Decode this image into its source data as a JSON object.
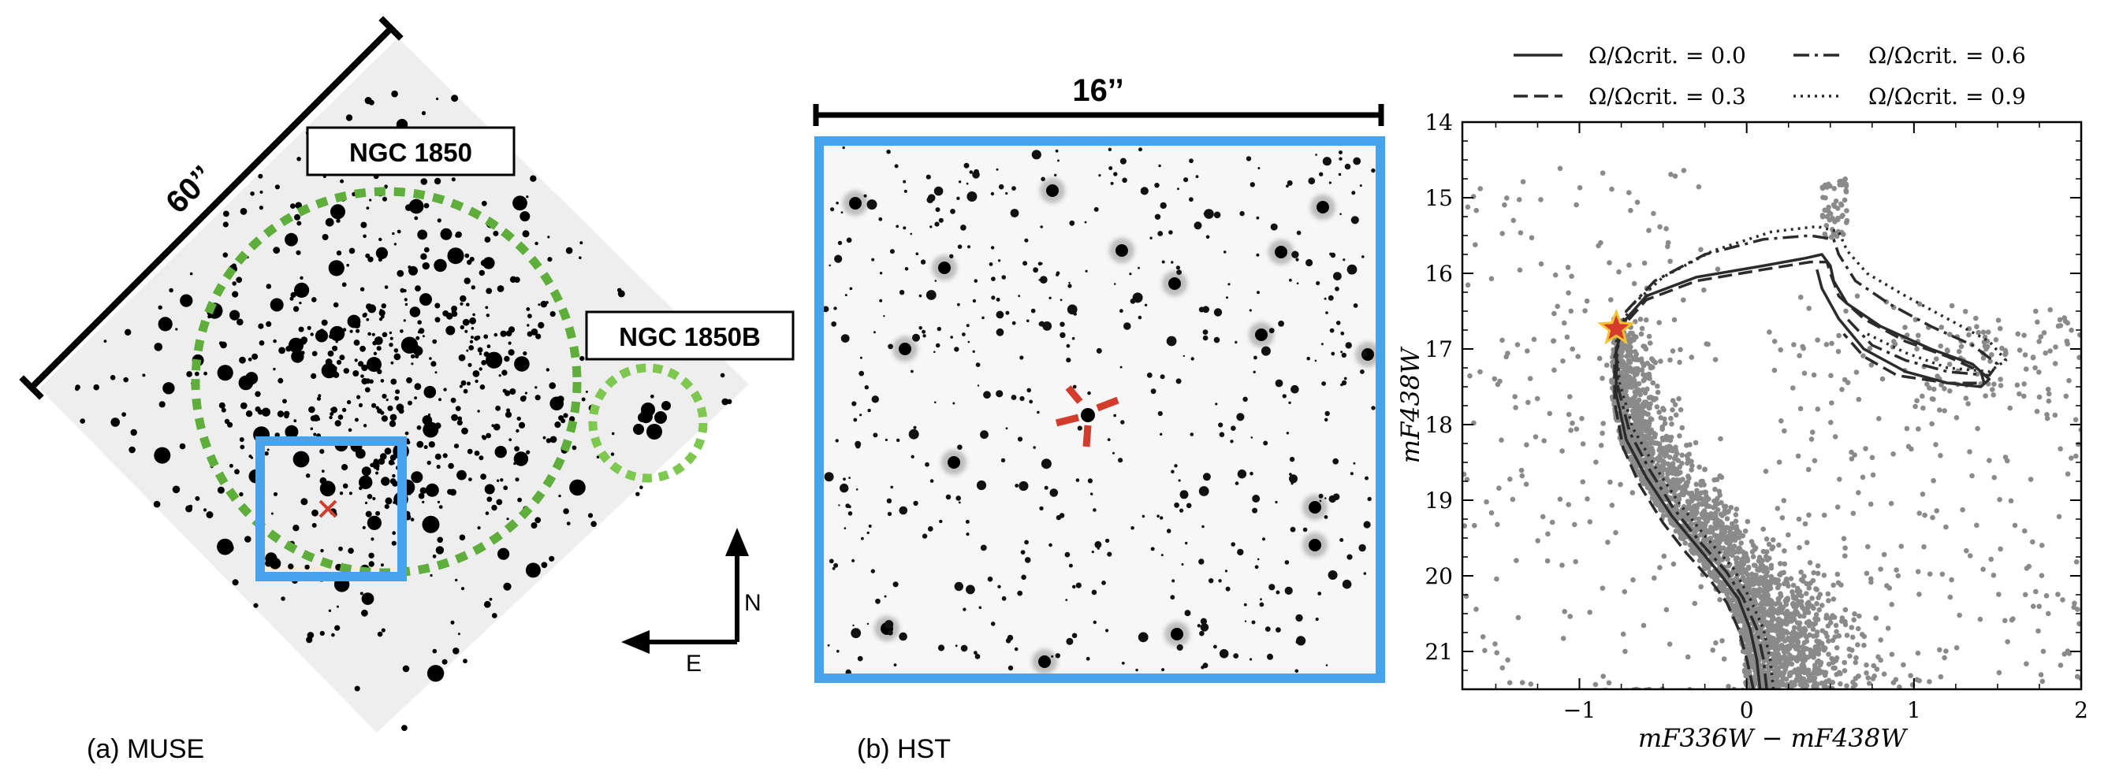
{
  "panel_a": {
    "caption": "(a) MUSE",
    "scale_label": "60’’",
    "cluster_main": "NGC 1850",
    "cluster_secondary": "NGC 1850B",
    "compass_north": "N",
    "compass_east": "E"
  },
  "panel_b": {
    "caption": "(b) HST",
    "scale_label": "16’’"
  },
  "panel_c": {
    "legend": [
      {
        "label": "Ω/Ωcrit. = 0.0",
        "style": "solid"
      },
      {
        "label": "Ω/Ωcrit. = 0.6",
        "style": "dashdot"
      },
      {
        "label": "Ω/Ωcrit. = 0.3",
        "style": "dashed"
      },
      {
        "label": "Ω/Ωcrit. = 0.9",
        "style": "dotted"
      }
    ],
    "xlabel": "mF336W − mF438W",
    "ylabel": "mF438W"
  },
  "chart_data": {
    "type": "scatter",
    "xlim": [
      -1.7,
      2.0
    ],
    "ylim": [
      21.5,
      14.0
    ],
    "x_ticks": [
      "−1",
      "0",
      "1",
      "2"
    ],
    "x_tick_values": [
      -1,
      0,
      1,
      2
    ],
    "y_ticks": [
      "14",
      "15",
      "16",
      "17",
      "18",
      "19",
      "20",
      "21"
    ],
    "y_tick_values": [
      14,
      15,
      16,
      17,
      18,
      19,
      20,
      21
    ],
    "highlight_star": {
      "x": -0.78,
      "y": 16.73
    },
    "point_color": "#8a8a8a",
    "isochrones": [
      {
        "style": "solid",
        "points": [
          [
            0.08,
            21.5
          ],
          [
            0.06,
            21.1
          ],
          [
            0.02,
            20.7
          ],
          [
            -0.05,
            20.3
          ],
          [
            -0.15,
            20.0
          ],
          [
            -0.3,
            19.6
          ],
          [
            -0.45,
            19.2
          ],
          [
            -0.6,
            18.7
          ],
          [
            -0.72,
            18.2
          ],
          [
            -0.78,
            17.6
          ],
          [
            -0.78,
            17.0
          ],
          [
            -0.72,
            16.6
          ],
          [
            -0.6,
            16.3
          ],
          [
            -0.3,
            16.05
          ],
          [
            0.1,
            15.9
          ],
          [
            0.35,
            15.8
          ],
          [
            0.45,
            15.75
          ],
          [
            0.5,
            15.9
          ],
          [
            0.52,
            16.1
          ],
          [
            0.6,
            16.4
          ],
          [
            0.8,
            16.7
          ],
          [
            1.1,
            17.0
          ],
          [
            1.35,
            17.2
          ],
          [
            1.45,
            17.4
          ],
          [
            1.4,
            17.5
          ],
          [
            1.2,
            17.45
          ],
          [
            0.95,
            17.3
          ],
          [
            0.7,
            17.0
          ],
          [
            0.55,
            16.6
          ],
          [
            0.45,
            16.2
          ],
          [
            0.42,
            15.95
          ]
        ]
      },
      {
        "style": "dashed",
        "points": [
          [
            0.04,
            21.5
          ],
          [
            0.0,
            21.1
          ],
          [
            -0.05,
            20.7
          ],
          [
            -0.12,
            20.35
          ],
          [
            -0.22,
            20.05
          ],
          [
            -0.36,
            19.7
          ],
          [
            -0.5,
            19.3
          ],
          [
            -0.64,
            18.8
          ],
          [
            -0.74,
            18.3
          ],
          [
            -0.79,
            17.7
          ],
          [
            -0.79,
            17.1
          ],
          [
            -0.72,
            16.65
          ],
          [
            -0.6,
            16.35
          ],
          [
            -0.3,
            16.1
          ],
          [
            0.1,
            15.95
          ],
          [
            0.38,
            15.85
          ],
          [
            0.48,
            15.85
          ],
          [
            0.5,
            16.0
          ],
          [
            0.55,
            16.3
          ],
          [
            0.7,
            16.6
          ],
          [
            0.95,
            16.9
          ],
          [
            1.2,
            17.1
          ],
          [
            1.4,
            17.3
          ],
          [
            1.42,
            17.45
          ],
          [
            1.2,
            17.45
          ],
          [
            0.9,
            17.35
          ],
          [
            0.7,
            17.1
          ],
          [
            0.58,
            16.8
          ]
        ]
      },
      {
        "style": "dashdot",
        "points": [
          [
            0.12,
            21.5
          ],
          [
            0.1,
            21.1
          ],
          [
            0.06,
            20.7
          ],
          [
            -0.02,
            20.3
          ],
          [
            -0.12,
            19.95
          ],
          [
            -0.28,
            19.55
          ],
          [
            -0.44,
            19.1
          ],
          [
            -0.58,
            18.6
          ],
          [
            -0.7,
            18.1
          ],
          [
            -0.77,
            17.5
          ],
          [
            -0.78,
            16.95
          ],
          [
            -0.72,
            16.5
          ],
          [
            -0.55,
            16.1
          ],
          [
            -0.25,
            15.75
          ],
          [
            0.1,
            15.55
          ],
          [
            0.38,
            15.5
          ],
          [
            0.52,
            15.55
          ],
          [
            0.55,
            15.75
          ],
          [
            0.65,
            16.1
          ],
          [
            0.85,
            16.4
          ],
          [
            1.1,
            16.7
          ],
          [
            1.35,
            16.95
          ],
          [
            1.5,
            17.2
          ],
          [
            1.45,
            17.35
          ],
          [
            1.2,
            17.3
          ],
          [
            0.95,
            17.15
          ],
          [
            0.75,
            16.95
          ],
          [
            0.6,
            16.6
          ]
        ]
      },
      {
        "style": "dotted",
        "points": [
          [
            0.16,
            21.5
          ],
          [
            0.14,
            21.1
          ],
          [
            0.1,
            20.7
          ],
          [
            0.02,
            20.3
          ],
          [
            -0.08,
            19.9
          ],
          [
            -0.24,
            19.5
          ],
          [
            -0.4,
            19.05
          ],
          [
            -0.55,
            18.55
          ],
          [
            -0.68,
            18.05
          ],
          [
            -0.76,
            17.45
          ],
          [
            -0.78,
            16.9
          ],
          [
            -0.7,
            16.45
          ],
          [
            -0.5,
            16.05
          ],
          [
            -0.2,
            15.7
          ],
          [
            0.15,
            15.45
          ],
          [
            0.42,
            15.38
          ],
          [
            0.55,
            15.45
          ],
          [
            0.6,
            15.7
          ],
          [
            0.72,
            16.0
          ],
          [
            0.95,
            16.3
          ],
          [
            1.2,
            16.6
          ],
          [
            1.45,
            16.9
          ],
          [
            1.55,
            17.15
          ],
          [
            1.45,
            17.3
          ],
          [
            1.2,
            17.25
          ],
          [
            0.95,
            17.05
          ],
          [
            0.72,
            16.8
          ]
        ]
      }
    ]
  }
}
